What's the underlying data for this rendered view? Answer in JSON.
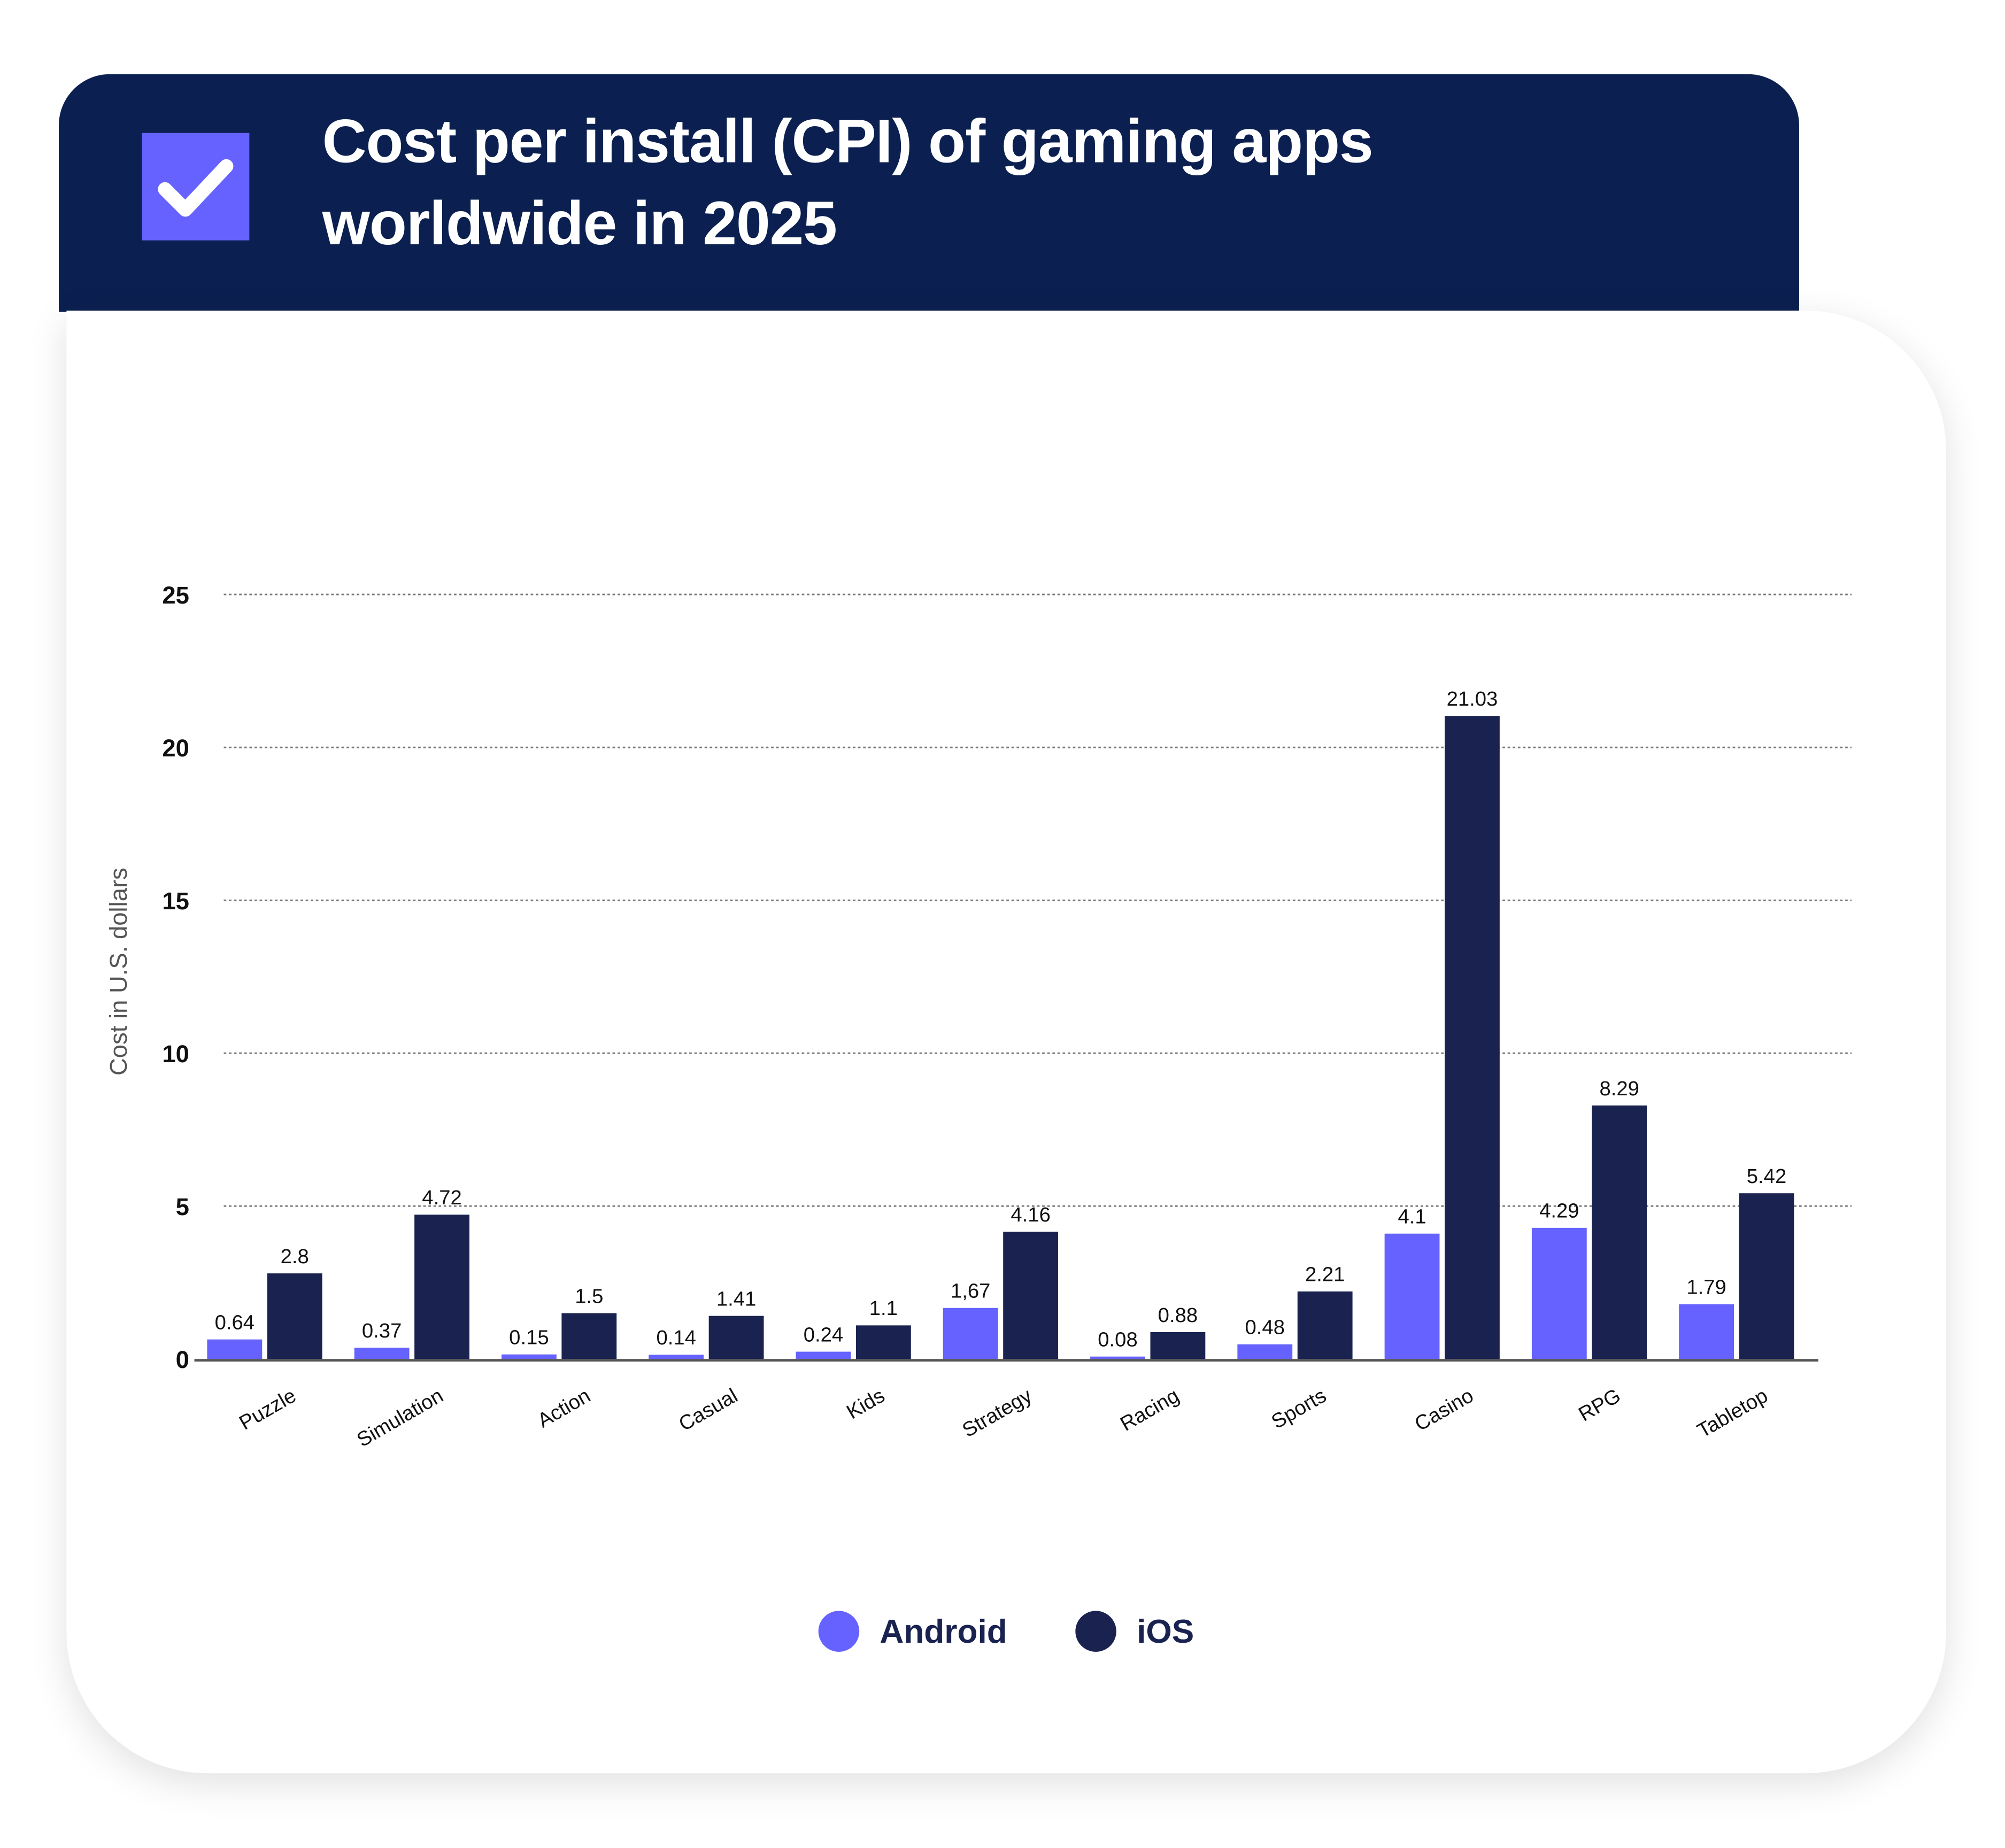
{
  "header": {
    "title": "Cost per install (CPI) of gaming apps worldwide in 2025",
    "icon": "checkmark-icon",
    "background_color": "#0b2050",
    "icon_color": "#6562ff"
  },
  "chart_data": {
    "type": "bar",
    "title": "Cost per install (CPI) of gaming apps worldwide in 2025",
    "xlabel": "",
    "ylabel": "Cost in U.S. dollars",
    "ylim": [
      0,
      25
    ],
    "yticks": [
      "0",
      "5",
      "10",
      "15",
      "20",
      "25"
    ],
    "grid": true,
    "legend_position": "bottom",
    "categories": [
      "Puzzle",
      "Simulation",
      "Action",
      "Casual",
      "Kids",
      "Strategy",
      "Racing",
      "Sports",
      "Casino",
      "RPG",
      "Tabletop"
    ],
    "series": [
      {
        "name": "Android",
        "color": "#6562ff",
        "values": [
          0.64,
          0.37,
          0.15,
          0.14,
          0.24,
          1.67,
          0.08,
          0.48,
          4.1,
          4.29,
          1.79
        ],
        "labels": [
          "0.64",
          "0.37",
          "0.15",
          "0.14",
          "0.24",
          "1,67",
          "0.08",
          "0.48",
          "4.1",
          "4.29",
          "1.79"
        ]
      },
      {
        "name": "iOS",
        "color": "#1a2350",
        "values": [
          2.8,
          4.72,
          1.5,
          1.41,
          1.1,
          4.16,
          0.88,
          2.21,
          21.03,
          8.29,
          5.42
        ],
        "labels": [
          "2.8",
          "4.72",
          "1.5",
          "1.41",
          "1.1",
          "4.16",
          "0.88",
          "2.21",
          "21.03",
          "8.29",
          "5.42"
        ]
      }
    ]
  }
}
